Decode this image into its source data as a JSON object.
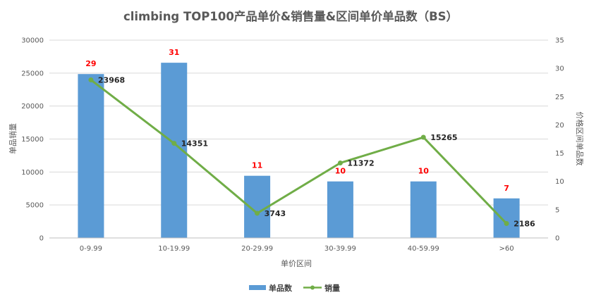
{
  "chart_data": {
    "type": "bar+line",
    "title": "climbing TOP100产品单价&销售量&区间单价单品数（BS）",
    "xlabel": "单价区间",
    "ylabel_left": "单品销量",
    "ylabel_right": "价格区间单品数",
    "categories": [
      "0-9.99",
      "10-19.99",
      "20-29.99",
      "30-39.99",
      "40-59.99",
      ">60"
    ],
    "ylim_left": [
      0,
      30000
    ],
    "yticks_left": [
      "0",
      "5000",
      "10000",
      "15000",
      "20000",
      "25000",
      "30000"
    ],
    "ylim_right": [
      0,
      35
    ],
    "yticks_right": [
      "0",
      "5",
      "10",
      "15",
      "20",
      "25",
      "30",
      "35"
    ],
    "grid": true,
    "legend_position": "bottom",
    "series": [
      {
        "name": "单品数",
        "type": "bar",
        "axis": "right",
        "color": "#5b9bd5",
        "label_color": "#ff0000",
        "values": [
          29,
          31,
          11,
          10,
          10,
          7
        ],
        "labels": [
          "29",
          "31",
          "11",
          "10",
          "10",
          "7"
        ]
      },
      {
        "name": "销量",
        "type": "line",
        "axis": "left",
        "color": "#70ad47",
        "values": [
          23968,
          14351,
          3743,
          11372,
          15265,
          2186
        ],
        "labels": [
          "23968",
          "14351",
          "3743",
          "11372",
          "15265",
          "2186"
        ]
      }
    ]
  }
}
